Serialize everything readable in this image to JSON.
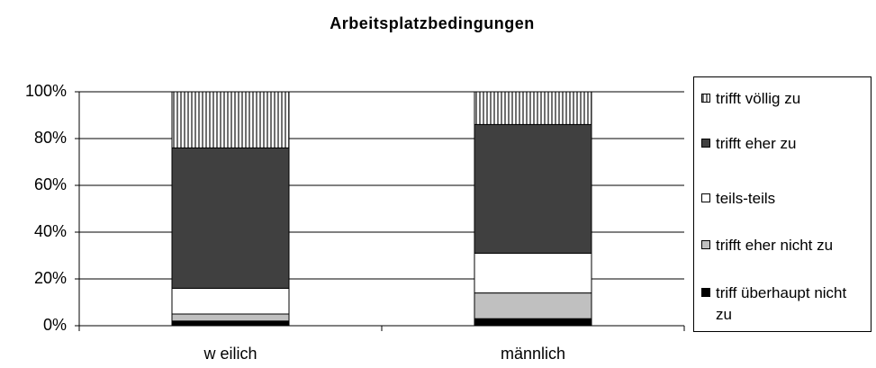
{
  "chart_data": {
    "type": "stacked-bar",
    "title": "Arbeitsplatzbedingungen",
    "categories": [
      "w eilich",
      "männlich"
    ],
    "series": [
      {
        "name": "triff überhaupt nicht zu",
        "color": "#000000",
        "values": [
          2,
          3
        ]
      },
      {
        "name": "trifft eher nicht zu",
        "color": "#c0c0c0",
        "values": [
          3,
          11
        ]
      },
      {
        "name": "teils-teils",
        "color": "#ffffff",
        "values": [
          11,
          17
        ]
      },
      {
        "name": "trifft eher zu",
        "color": "#404040",
        "values": [
          60,
          55
        ]
      },
      {
        "name": "trifft völlig zu",
        "color": "#707070",
        "pattern": "vertical-lines",
        "values": [
          24,
          14
        ]
      }
    ],
    "ylim": [
      0,
      100
    ],
    "yticks": [
      {
        "value": 0,
        "label": "0%"
      },
      {
        "value": 20,
        "label": "20%"
      },
      {
        "value": 40,
        "label": "40%"
      },
      {
        "value": 60,
        "label": "60%"
      },
      {
        "value": 80,
        "label": "80%"
      },
      {
        "value": 100,
        "label": "100%"
      }
    ],
    "grid": true,
    "legend": "right"
  }
}
